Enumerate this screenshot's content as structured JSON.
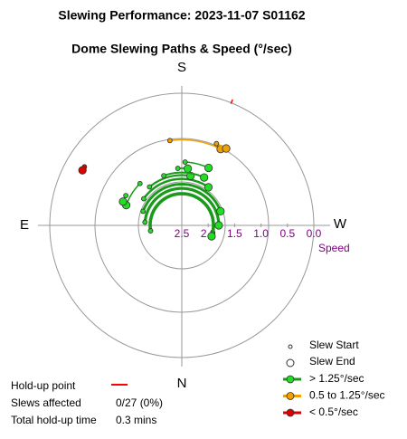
{
  "chart_data": {
    "type": "polar-slew",
    "title": "Slewing Performance: 2023-11-07  S01162",
    "subtitle": "Dome Slewing Paths & Speed (°/sec)",
    "compass": {
      "S": "S",
      "N": "N",
      "E": "E",
      "W": "W"
    },
    "r_label": "Speed",
    "rlim": [
      2.5,
      0
    ],
    "rticks": [
      2.5,
      {
        "value": 2,
        "label": "2.0"
      },
      1.5,
      {
        "value": 1,
        "label": "1.0"
      },
      0.5,
      {
        "value": 0,
        "label": "0.0"
      }
    ],
    "legend_start": "Slew Start",
    "legend_end": "Slew End",
    "series": [
      {
        "name": "> 1.25°/sec",
        "color": "#1a9a1a",
        "point_color": "#22dd22",
        "start_az": [
          80,
          95,
          110,
          125,
          140,
          135,
          118,
          176,
          183,
          160
        ],
        "end_az": [
          290,
          270,
          250,
          215,
          190,
          110,
          112,
          186,
          205,
          205
        ],
        "values": [
          1.9,
          1.8,
          1.72,
          1.62,
          1.55,
          1.38,
          1.3,
          1.42,
          1.3,
          1.5
        ]
      },
      {
        "name": "0.5 to 1.25°/sec",
        "color": "#f0a000",
        "point_color": "#f0a000",
        "start_az": [
          172,
          203
        ],
        "end_az": [
          207,
          210
        ],
        "values": [
          0.88,
          0.82
        ]
      },
      {
        "name": "< 0.5°/sec",
        "color": "#dd0000",
        "point_color": "#dd0000",
        "start_az": [
          121
        ],
        "end_az": [
          119
        ],
        "values": [
          0.35
        ]
      }
    ],
    "holdup": {
      "label": "Hold-up point",
      "color": "#ff0000",
      "az": [
        202
      ],
      "affected_label": "Slews affected",
      "affected": "0/27 (0%)",
      "time_label": "Total hold-up time",
      "time": "0.3 mins"
    }
  }
}
